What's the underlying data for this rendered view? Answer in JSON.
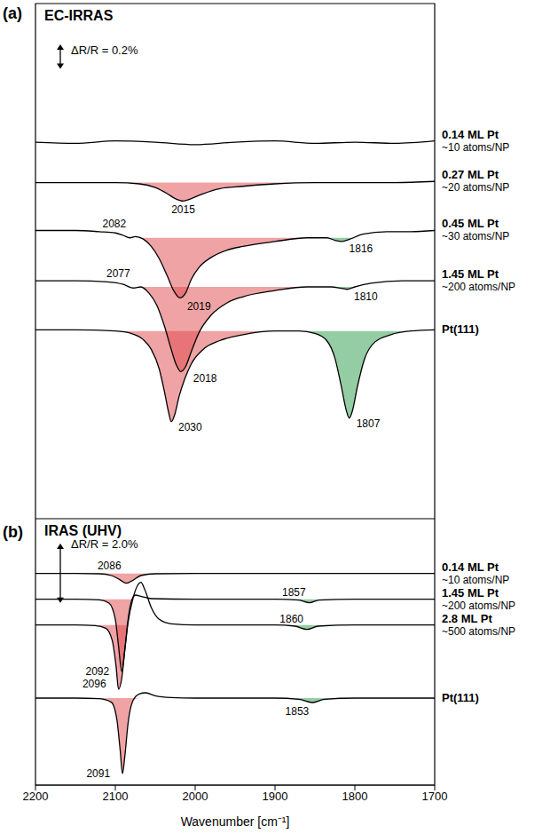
{
  "chart_data": [
    {
      "type": "line",
      "panel": "(a)",
      "title": "EC-IRRAS",
      "scale_bar": {
        "label": "ΔR/R = 0.2%",
        "value": 0.2
      },
      "xlim": [
        2200,
        1700
      ],
      "ylim": [
        0,
        4.2
      ],
      "tick_labels": false,
      "series": [
        {
          "name": "0.14 ML Pt",
          "size": "~10 atoms/NP",
          "color": "#000000",
          "x": [
            2200,
            2150,
            2100,
            2050,
            2000,
            1950,
            1900,
            1850,
            1800,
            1750,
            1700
          ],
          "values": [
            3.07,
            3.06,
            3.08,
            3.07,
            3.05,
            3.07,
            3.08,
            3.06,
            3.07,
            3.06,
            3.08
          ],
          "peaks": []
        },
        {
          "name": "0.27 ML Pt",
          "size": "~20 atoms/NP",
          "color": "#000000",
          "x": [
            2200,
            2150,
            2100,
            2070,
            2050,
            2035,
            2025,
            2015,
            2005,
            1990,
            1970,
            1940,
            1900,
            1850,
            1800,
            1750,
            1700
          ],
          "values": [
            2.74,
            2.74,
            2.74,
            2.73,
            2.7,
            2.65,
            2.61,
            2.59,
            2.61,
            2.65,
            2.69,
            2.71,
            2.73,
            2.74,
            2.74,
            2.74,
            2.75
          ],
          "peaks": [
            {
              "x": 2015,
              "label": "2015",
              "color": "#e0474c"
            }
          ]
        },
        {
          "name": "0.45 ML Pt",
          "size": "~30 atoms/NP",
          "color": "#000000",
          "x": [
            2200,
            2150,
            2120,
            2100,
            2090,
            2082,
            2075,
            2065,
            2055,
            2045,
            2035,
            2027,
            2019,
            2012,
            2005,
            1995,
            1980,
            1960,
            1940,
            1900,
            1860,
            1835,
            1825,
            1816,
            1806,
            1790,
            1760,
            1730,
            1700
          ],
          "values": [
            2.35,
            2.35,
            2.34,
            2.33,
            2.31,
            2.29,
            2.3,
            2.28,
            2.22,
            2.12,
            1.98,
            1.86,
            1.8,
            1.84,
            1.95,
            2.05,
            2.13,
            2.19,
            2.22,
            2.26,
            2.29,
            2.29,
            2.27,
            2.26,
            2.28,
            2.32,
            2.34,
            2.34,
            2.35
          ],
          "peaks": [
            {
              "x": 2082,
              "label": "2082",
              "color": "#7f9fd4"
            },
            {
              "x": 2019,
              "label": "2019",
              "color": "#e0474c"
            },
            {
              "x": 1816,
              "label": "1816",
              "color": "#2a9a47"
            }
          ]
        },
        {
          "name": "1.45 ML Pt",
          "size": "~200 atoms/NP",
          "color": "#000000",
          "x": [
            2200,
            2150,
            2110,
            2090,
            2077,
            2068,
            2058,
            2048,
            2038,
            2030,
            2024,
            2018,
            2012,
            2005,
            1995,
            1980,
            1960,
            1940,
            1900,
            1860,
            1830,
            1818,
            1810,
            1800,
            1780,
            1740,
            1700
          ],
          "values": [
            1.94,
            1.94,
            1.93,
            1.91,
            1.88,
            1.89,
            1.84,
            1.74,
            1.56,
            1.38,
            1.26,
            1.2,
            1.24,
            1.36,
            1.52,
            1.66,
            1.76,
            1.81,
            1.86,
            1.89,
            1.89,
            1.88,
            1.87,
            1.89,
            1.92,
            1.94,
            1.94
          ],
          "peaks": [
            {
              "x": 2077,
              "label": "2077",
              "color": "#7f9fd4"
            },
            {
              "x": 2018,
              "label": "2018",
              "color": "#e0474c"
            },
            {
              "x": 1810,
              "label": "1810",
              "color": "#2a9a47"
            }
          ]
        },
        {
          "name": "Pt(111)",
          "color": "#000000",
          "x": [
            2200,
            2150,
            2100,
            2080,
            2065,
            2055,
            2045,
            2038,
            2033,
            2030,
            2026,
            2020,
            2013,
            2005,
            1990,
            1970,
            1940,
            1900,
            1870,
            1850,
            1835,
            1825,
            1817,
            1811,
            1807,
            1803,
            1797,
            1788,
            1775,
            1755,
            1730,
            1700
          ],
          "values": [
            1.54,
            1.54,
            1.53,
            1.51,
            1.46,
            1.38,
            1.22,
            1.02,
            0.86,
            0.79,
            0.84,
            1.0,
            1.14,
            1.26,
            1.38,
            1.45,
            1.5,
            1.53,
            1.53,
            1.51,
            1.45,
            1.31,
            1.08,
            0.89,
            0.82,
            0.88,
            1.07,
            1.3,
            1.44,
            1.5,
            1.53,
            1.54
          ],
          "peaks": [
            {
              "x": 2030,
              "label": "2030",
              "color": "#e0474c"
            },
            {
              "x": 1807,
              "label": "1807",
              "color": "#2a9a47"
            }
          ]
        }
      ]
    },
    {
      "type": "line",
      "panel": "(b)",
      "title": "IRAS (UHV)",
      "x_label": "Wavenumber [cm⁻¹]",
      "scale_bar": {
        "label": "ΔR/R = 2.0%",
        "value": 2
      },
      "xlim": [
        2200,
        1700
      ],
      "xticks": [
        2200,
        2100,
        2000,
        1900,
        1800,
        1700
      ],
      "ylim": [
        0,
        9
      ],
      "tick_labels": "x",
      "series": [
        {
          "name": "0.14 ML Pt",
          "size": "~10 atoms/NP",
          "color": "#000000",
          "x": [
            2200,
            2150,
            2120,
            2105,
            2095,
            2086,
            2078,
            2068,
            2050,
            2000,
            1900,
            1800,
            1700
          ],
          "values": [
            7.15,
            7.15,
            7.14,
            7.08,
            6.95,
            6.82,
            6.92,
            7.08,
            7.14,
            7.15,
            7.15,
            7.15,
            7.15
          ],
          "peaks": [
            {
              "x": 2086,
              "label": "2086",
              "color": "#e0474c"
            }
          ]
        },
        {
          "name": "1.45 ML Pt",
          "size": "~200 atoms/NP",
          "color": "#000000",
          "x": [
            2200,
            2150,
            2120,
            2108,
            2100,
            2096,
            2092,
            2088,
            2084,
            2080,
            2075,
            2068,
            2055,
            2000,
            1900,
            1870,
            1857,
            1845,
            1800,
            1700
          ],
          "values": [
            6.28,
            6.28,
            6.26,
            6.15,
            5.6,
            4.7,
            3.84,
            4.6,
            5.6,
            6.2,
            6.42,
            6.38,
            6.3,
            6.28,
            6.28,
            6.25,
            6.16,
            6.25,
            6.28,
            6.28
          ],
          "peaks": [
            {
              "x": 2092,
              "label": "2092",
              "color": "#e0474c"
            },
            {
              "x": 1857,
              "label": "1857",
              "color": "#2a9a47"
            }
          ]
        },
        {
          "name": "2.8 ML Pt",
          "size": "~500 atoms/NP",
          "color": "#000000",
          "x": [
            2200,
            2150,
            2125,
            2112,
            2104,
            2099,
            2096,
            2092,
            2088,
            2084,
            2078,
            2072,
            2068,
            2063,
            2055,
            2045,
            2030,
            2000,
            1900,
            1875,
            1860,
            1846,
            1800,
            1700
          ],
          "values": [
            5.41,
            5.41,
            5.39,
            5.3,
            4.9,
            4.0,
            3.24,
            3.6,
            4.6,
            5.5,
            6.3,
            6.75,
            6.85,
            6.6,
            6.0,
            5.6,
            5.45,
            5.41,
            5.41,
            5.37,
            5.26,
            5.37,
            5.41,
            5.41
          ],
          "peaks": [
            {
              "x": 2096,
              "label": "2096",
              "color": "#e0474c"
            },
            {
              "x": 1860,
              "label": "1860",
              "color": "#2a9a47"
            }
          ]
        },
        {
          "name": "Pt(111)",
          "color": "#000000",
          "x": [
            2200,
            2150,
            2120,
            2105,
            2098,
            2094,
            2091,
            2088,
            2084,
            2078,
            2070,
            2062,
            2050,
            2030,
            2000,
            1900,
            1870,
            1853,
            1838,
            1800,
            1700
          ],
          "values": [
            2.94,
            2.94,
            2.92,
            2.8,
            2.2,
            1.2,
            0.39,
            1.0,
            2.1,
            2.85,
            3.08,
            3.12,
            3.02,
            2.96,
            2.94,
            2.94,
            2.9,
            2.79,
            2.9,
            2.94,
            2.94
          ],
          "peaks": [
            {
              "x": 2091,
              "label": "2091",
              "color": "#e0474c"
            },
            {
              "x": 1853,
              "label": "1853",
              "color": "#2a9a47"
            }
          ]
        }
      ]
    }
  ]
}
